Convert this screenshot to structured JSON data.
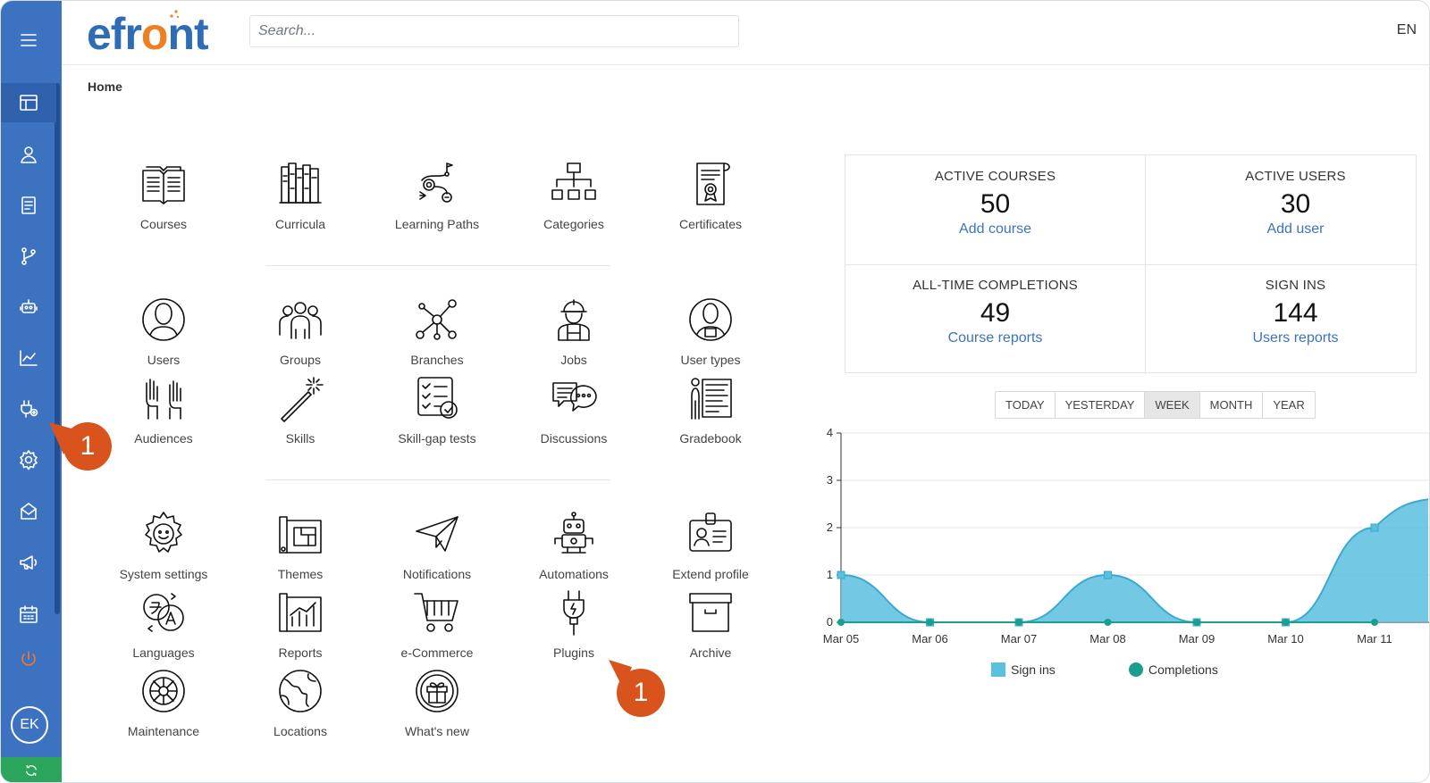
{
  "header": {
    "logo": {
      "pre": "efr",
      "o": "o",
      "post": "nt"
    },
    "search_placeholder": "Search...",
    "language": "EN"
  },
  "breadcrumb": "Home",
  "sidebar": {
    "items": [
      {
        "name": "menu-icon"
      },
      {
        "name": "dashboard-icon"
      },
      {
        "name": "user-icon"
      },
      {
        "name": "courses-icon"
      },
      {
        "name": "branches-icon"
      },
      {
        "name": "robot-icon"
      },
      {
        "name": "reports-icon"
      },
      {
        "name": "plugins-icon"
      },
      {
        "name": "settings-icon"
      },
      {
        "name": "messages-icon"
      },
      {
        "name": "announcements-icon"
      },
      {
        "name": "calendar-icon"
      },
      {
        "name": "power-icon"
      }
    ],
    "avatar": "EK",
    "accent": "#3d72c1"
  },
  "tiles": {
    "courses": "Courses",
    "curricula": "Curricula",
    "learning_paths": "Learning Paths",
    "categories": "Categories",
    "certificates": "Certificates",
    "users": "Users",
    "groups": "Groups",
    "branches": "Branches",
    "jobs": "Jobs",
    "user_types": "User types",
    "audiences": "Audiences",
    "skills": "Skills",
    "skill_gap_tests": "Skill-gap tests",
    "discussions": "Discussions",
    "gradebook": "Gradebook",
    "system_settings": "System settings",
    "themes": "Themes",
    "notifications": "Notifications",
    "automations": "Automations",
    "extend_profile": "Extend profile",
    "languages": "Languages",
    "reports": "Reports",
    "ecommerce": "e-Commerce",
    "plugins": "Plugins",
    "archive": "Archive",
    "maintenance": "Maintenance",
    "locations": "Locations",
    "whats_new": "What's new"
  },
  "callouts": {
    "sidebar": "1",
    "plugins": "1"
  },
  "stats": {
    "active_courses": {
      "title": "ACTIVE COURSES",
      "value": "50",
      "action": "Add course"
    },
    "active_users": {
      "title": "ACTIVE USERS",
      "value": "30",
      "action": "Add user"
    },
    "completions": {
      "title": "ALL-TIME COMPLETIONS",
      "value": "49",
      "action": "Course reports"
    },
    "sign_ins": {
      "title": "SIGN INS",
      "value": "144",
      "action": "Users reports"
    }
  },
  "periods": [
    "TODAY",
    "YESTERDAY",
    "WEEK",
    "MONTH",
    "YEAR"
  ],
  "selected_period": "WEEK",
  "chart_data": {
    "type": "area",
    "x": [
      "Mar 05",
      "Mar 06",
      "Mar 07",
      "Mar 08",
      "Mar 09",
      "Mar 10",
      "Mar 11"
    ],
    "series": [
      {
        "name": "Sign ins",
        "values": [
          1,
          0,
          0,
          1,
          0,
          0,
          2
        ],
        "color": "#5bc0de"
      },
      {
        "name": "Completions",
        "values": [
          0,
          0,
          0,
          0,
          0,
          0,
          0
        ],
        "color": "#1a9e8f"
      }
    ],
    "ylim": [
      0,
      4
    ],
    "yticks": [
      "0",
      "1",
      "2",
      "3",
      "4"
    ],
    "grid": true,
    "legend": "bottom"
  }
}
